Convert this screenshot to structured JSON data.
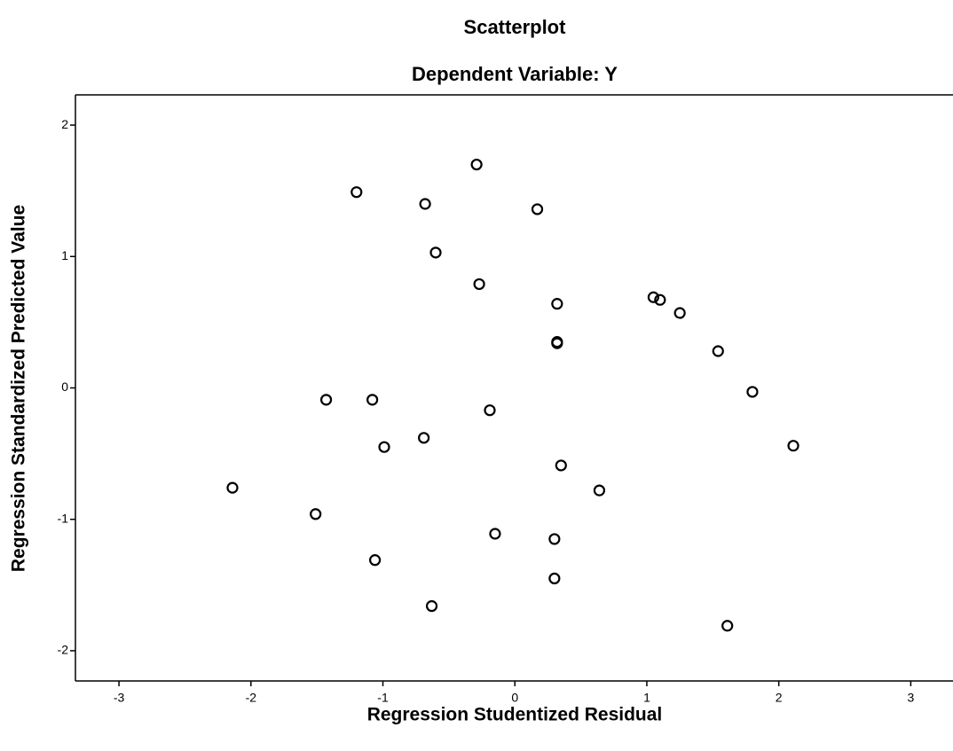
{
  "chart_data": {
    "type": "scatter",
    "title": "Scatterplot",
    "subtitle": "Dependent Variable: Y",
    "x_label": "Regression Studentized Residual",
    "y_label": "Regression Standardized Predicted Value",
    "x": [
      -1.2,
      -0.68,
      -0.29,
      0.17,
      -0.6,
      -0.27,
      0.32,
      1.05,
      1.1,
      1.25,
      0.32,
      0.32,
      1.54,
      1.8,
      -1.43,
      -1.08,
      -0.19,
      -0.69,
      -0.99,
      0.35,
      2.11,
      -2.14,
      0.64,
      -1.51,
      -0.15,
      0.3,
      -1.06,
      0.3,
      -0.63,
      1.61
    ],
    "values": [
      1.49,
      1.4,
      1.7,
      1.36,
      1.03,
      0.79,
      0.64,
      0.69,
      0.67,
      0.57,
      0.35,
      0.34,
      0.28,
      -0.03,
      -0.09,
      -0.09,
      -0.17,
      -0.38,
      -0.45,
      -0.59,
      -0.44,
      -0.76,
      -0.78,
      -0.96,
      -1.11,
      -1.15,
      -1.31,
      -1.45,
      -1.66,
      -1.81
    ],
    "color": "#000000",
    "xlim": [
      -3.33,
      3.32
    ],
    "ylim": [
      -2.23,
      2.23
    ],
    "xticks": [
      -3,
      -2,
      -1,
      0,
      1,
      2,
      3
    ],
    "yticks": [
      -2,
      -1,
      0,
      1,
      2
    ]
  }
}
